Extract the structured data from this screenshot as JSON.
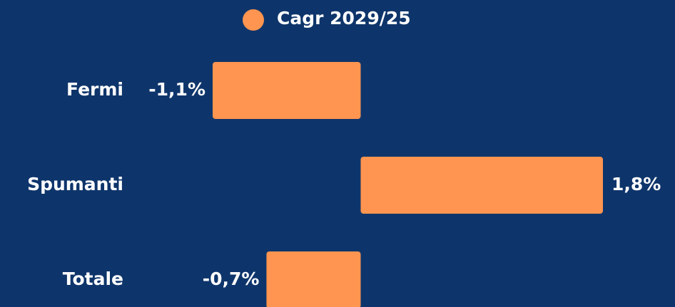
{
  "chart_data": {
    "type": "bar",
    "orientation": "horizontal",
    "categories": [
      "Fermi",
      "Spumanti",
      "Totale"
    ],
    "series": [
      {
        "name": "Cagr 2029/25",
        "color": "#ff9550",
        "values": [
          -1.1,
          1.8,
          -0.7
        ],
        "value_labels": [
          "-1,1%",
          "1,8%",
          "-0,7%"
        ]
      }
    ],
    "legend": "top"
  }
}
